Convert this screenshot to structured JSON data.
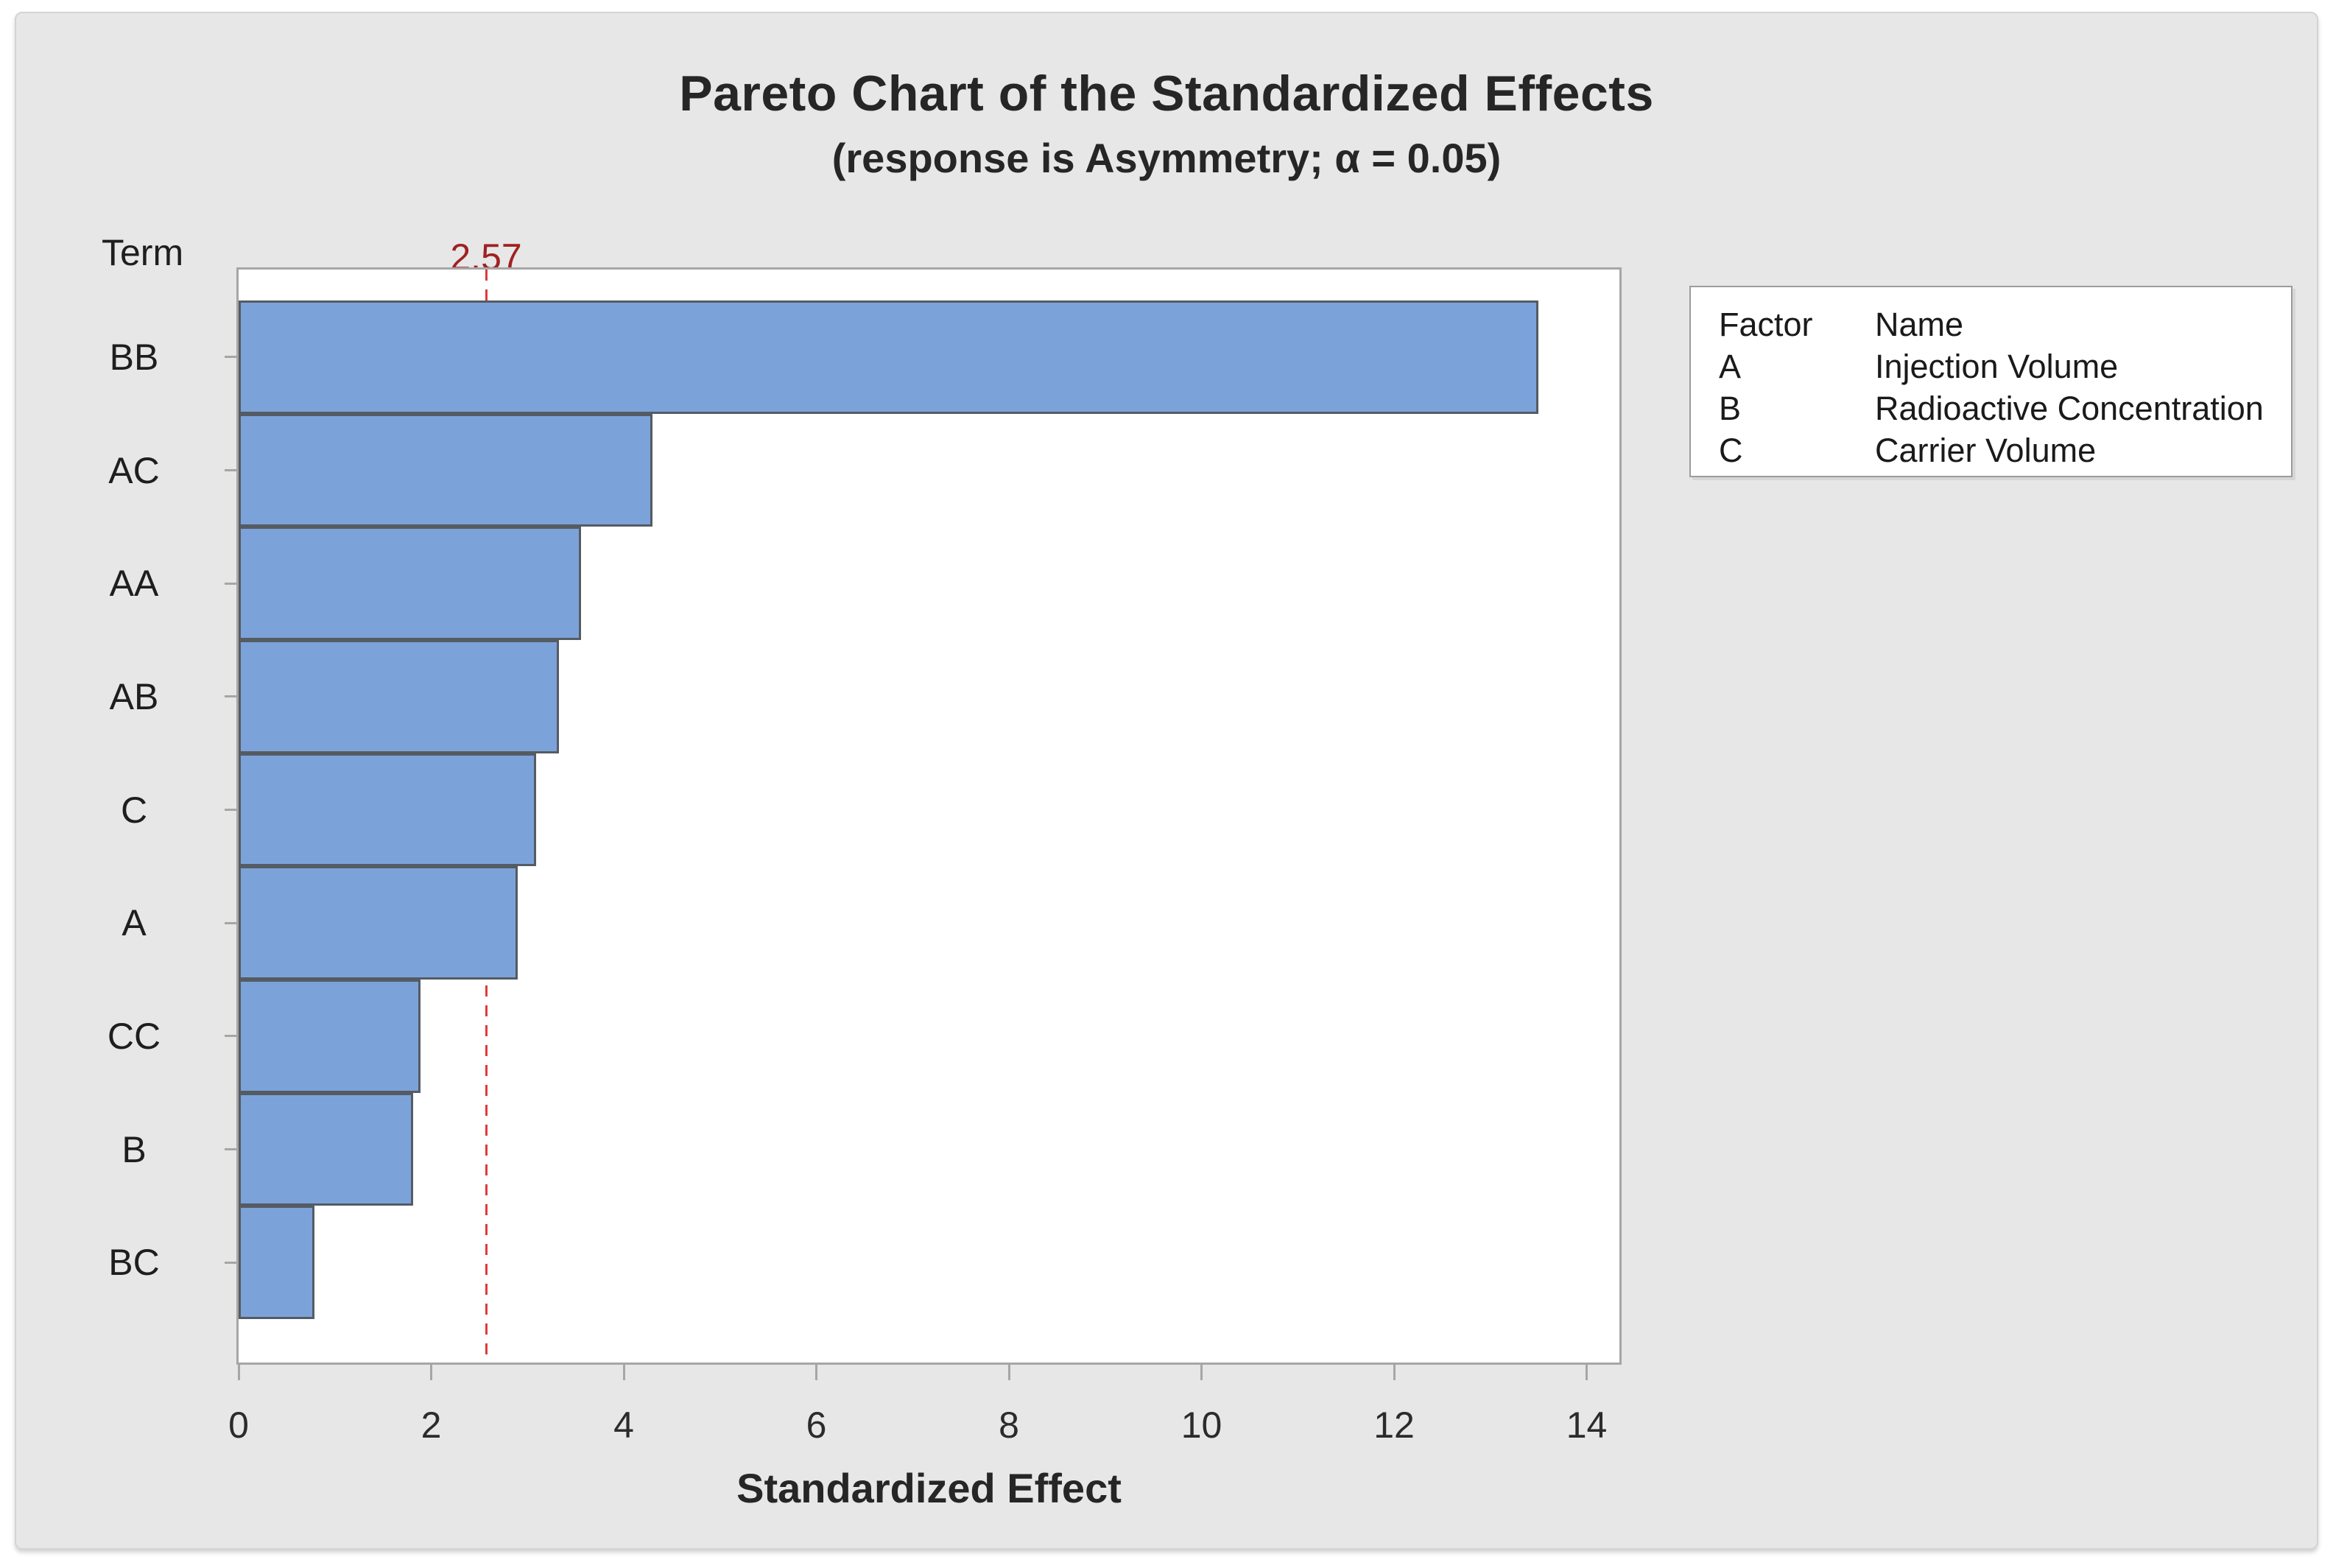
{
  "chart": {
    "title": "Pareto Chart of the Standardized Effects",
    "subtitle": "(response is Asymmetry; α = 0.05)",
    "y_axis_header": "Term",
    "xlabel": "Standardized Effect",
    "ref_line_label": "2.57"
  },
  "chart_data": {
    "type": "bar",
    "orientation": "horizontal",
    "title": "Pareto Chart of the Standardized Effects",
    "subtitle": "(response is Asymmetry; α = 0.05)",
    "xlabel": "Standardized Effect",
    "ylabel": "Term",
    "categories": [
      "BB",
      "AC",
      "AA",
      "AB",
      "C",
      "A",
      "CC",
      "B",
      "BC"
    ],
    "values": [
      13.5,
      4.3,
      3.56,
      3.33,
      3.09,
      2.9,
      1.89,
      1.81,
      0.79
    ],
    "reference_line": {
      "value": 2.57,
      "label": "2.57",
      "alpha": 0.05,
      "style": "dashed"
    },
    "xlim": [
      0,
      14.34
    ],
    "xticks": [
      0,
      2,
      4,
      6,
      8,
      10,
      12,
      14
    ],
    "grid": false,
    "legend_position": "right",
    "colors": {
      "bar_fill": "#7CA3D9",
      "bar_border": "#555B63",
      "reference_line": "#DE3B3B",
      "reference_label": "#9E2222",
      "panel_background": "#E7E7E7",
      "plot_background": "#FFFFFF",
      "frame": "#A6A6A6"
    }
  },
  "legend": {
    "headers": [
      "Factor",
      "Name"
    ],
    "rows": [
      {
        "factor": "A",
        "name": "Injection Volume"
      },
      {
        "factor": "B",
        "name": "Radioactive Concentration"
      },
      {
        "factor": "C",
        "name": "Carrier Volume"
      }
    ]
  }
}
